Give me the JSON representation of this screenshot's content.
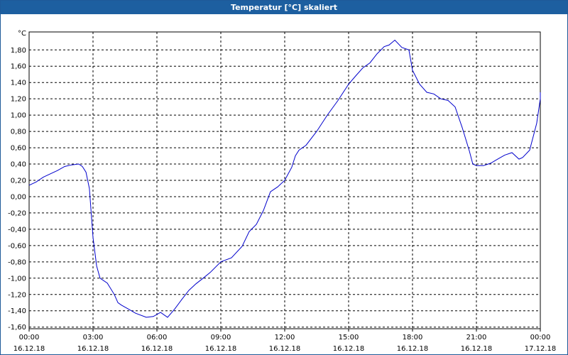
{
  "window": {
    "title": "Temperatur [°C] skaliert"
  },
  "colors": {
    "titlebar": "#1d5fa0",
    "line": "#0000cc",
    "grid": "#000000"
  },
  "chart_data": {
    "type": "line",
    "title": "Temperatur [°C] skaliert",
    "ylabel": "°C",
    "xlabel": "",
    "ylim": [
      -1.62,
      2.02
    ],
    "xlim_hours": [
      0,
      24
    ],
    "y_ticks": [
      "1,80",
      "1,60",
      "1,40",
      "1,20",
      "1,00",
      "0,80",
      "0,60",
      "0,40",
      "0,20",
      "0,00",
      "-0,20",
      "-0,40",
      "-0,60",
      "-0,80",
      "-1,00",
      "-1,20",
      "-1,40",
      "-1,60"
    ],
    "y_tick_values": [
      1.8,
      1.6,
      1.4,
      1.2,
      1.0,
      0.8,
      0.6,
      0.4,
      0.2,
      0.0,
      -0.2,
      -0.4,
      -0.6,
      -0.8,
      -1.0,
      -1.2,
      -1.4,
      -1.6
    ],
    "x_ticks": [
      {
        "time": "00:00",
        "date": "16.12.18",
        "hour": 0
      },
      {
        "time": "03:00",
        "date": "16.12.18",
        "hour": 3
      },
      {
        "time": "06:00",
        "date": "16.12.18",
        "hour": 6
      },
      {
        "time": "09:00",
        "date": "16.12.18",
        "hour": 9
      },
      {
        "time": "12:00",
        "date": "16.12.18",
        "hour": 12
      },
      {
        "time": "15:00",
        "date": "16.12.18",
        "hour": 15
      },
      {
        "time": "18:00",
        "date": "16.12.18",
        "hour": 18
      },
      {
        "time": "21:00",
        "date": "16.12.18",
        "hour": 21
      },
      {
        "time": "00:00",
        "date": "17.12.18",
        "hour": 24
      }
    ],
    "grid": true,
    "series": [
      {
        "x_hours": [
          0,
          0.33,
          0.67,
          1,
          1.33,
          1.67,
          2,
          2.33,
          2.5,
          2.67,
          2.83,
          3,
          3.17,
          3.33,
          3.67,
          4,
          4.17,
          4.33,
          4.67,
          5,
          5.5,
          5.83,
          6.17,
          6.5,
          6.83,
          7.17,
          7.5,
          7.83,
          8.17,
          8.5,
          9,
          9.5,
          10,
          10.33,
          10.67,
          11,
          11.33,
          11.67,
          12,
          12.33,
          12.5,
          12.67,
          13,
          13.5,
          14,
          14.5,
          15,
          15.33,
          15.67,
          16,
          16.33,
          16.67,
          16.9,
          17.17,
          17.5,
          17.83,
          18,
          18.33,
          18.67,
          19,
          19.33,
          19.67,
          20,
          20.33,
          20.67,
          20.83,
          21,
          21.33,
          21.67,
          22,
          22.33,
          22.67,
          23,
          23.17,
          23.5,
          23.83,
          24,
          24.2
        ],
        "values": [
          0.14,
          0.18,
          0.24,
          0.28,
          0.32,
          0.37,
          0.39,
          0.4,
          0.37,
          0.3,
          0.1,
          -0.5,
          -0.85,
          -1.0,
          -1.06,
          -1.2,
          -1.3,
          -1.33,
          -1.38,
          -1.43,
          -1.48,
          -1.47,
          -1.42,
          -1.48,
          -1.38,
          -1.26,
          -1.15,
          -1.07,
          -1.0,
          -0.93,
          -0.8,
          -0.75,
          -0.61,
          -0.43,
          -0.34,
          -0.17,
          0.06,
          0.12,
          0.2,
          0.36,
          0.5,
          0.57,
          0.63,
          0.8,
          1.0,
          1.18,
          1.38,
          1.48,
          1.58,
          1.64,
          1.75,
          1.84,
          1.86,
          1.92,
          1.83,
          1.8,
          1.55,
          1.38,
          1.28,
          1.26,
          1.2,
          1.18,
          1.1,
          0.85,
          0.56,
          0.4,
          0.38,
          0.38,
          0.41,
          0.46,
          0.51,
          0.54,
          0.46,
          0.48,
          0.57,
          0.9,
          1.2,
          1.28
        ]
      }
    ]
  }
}
